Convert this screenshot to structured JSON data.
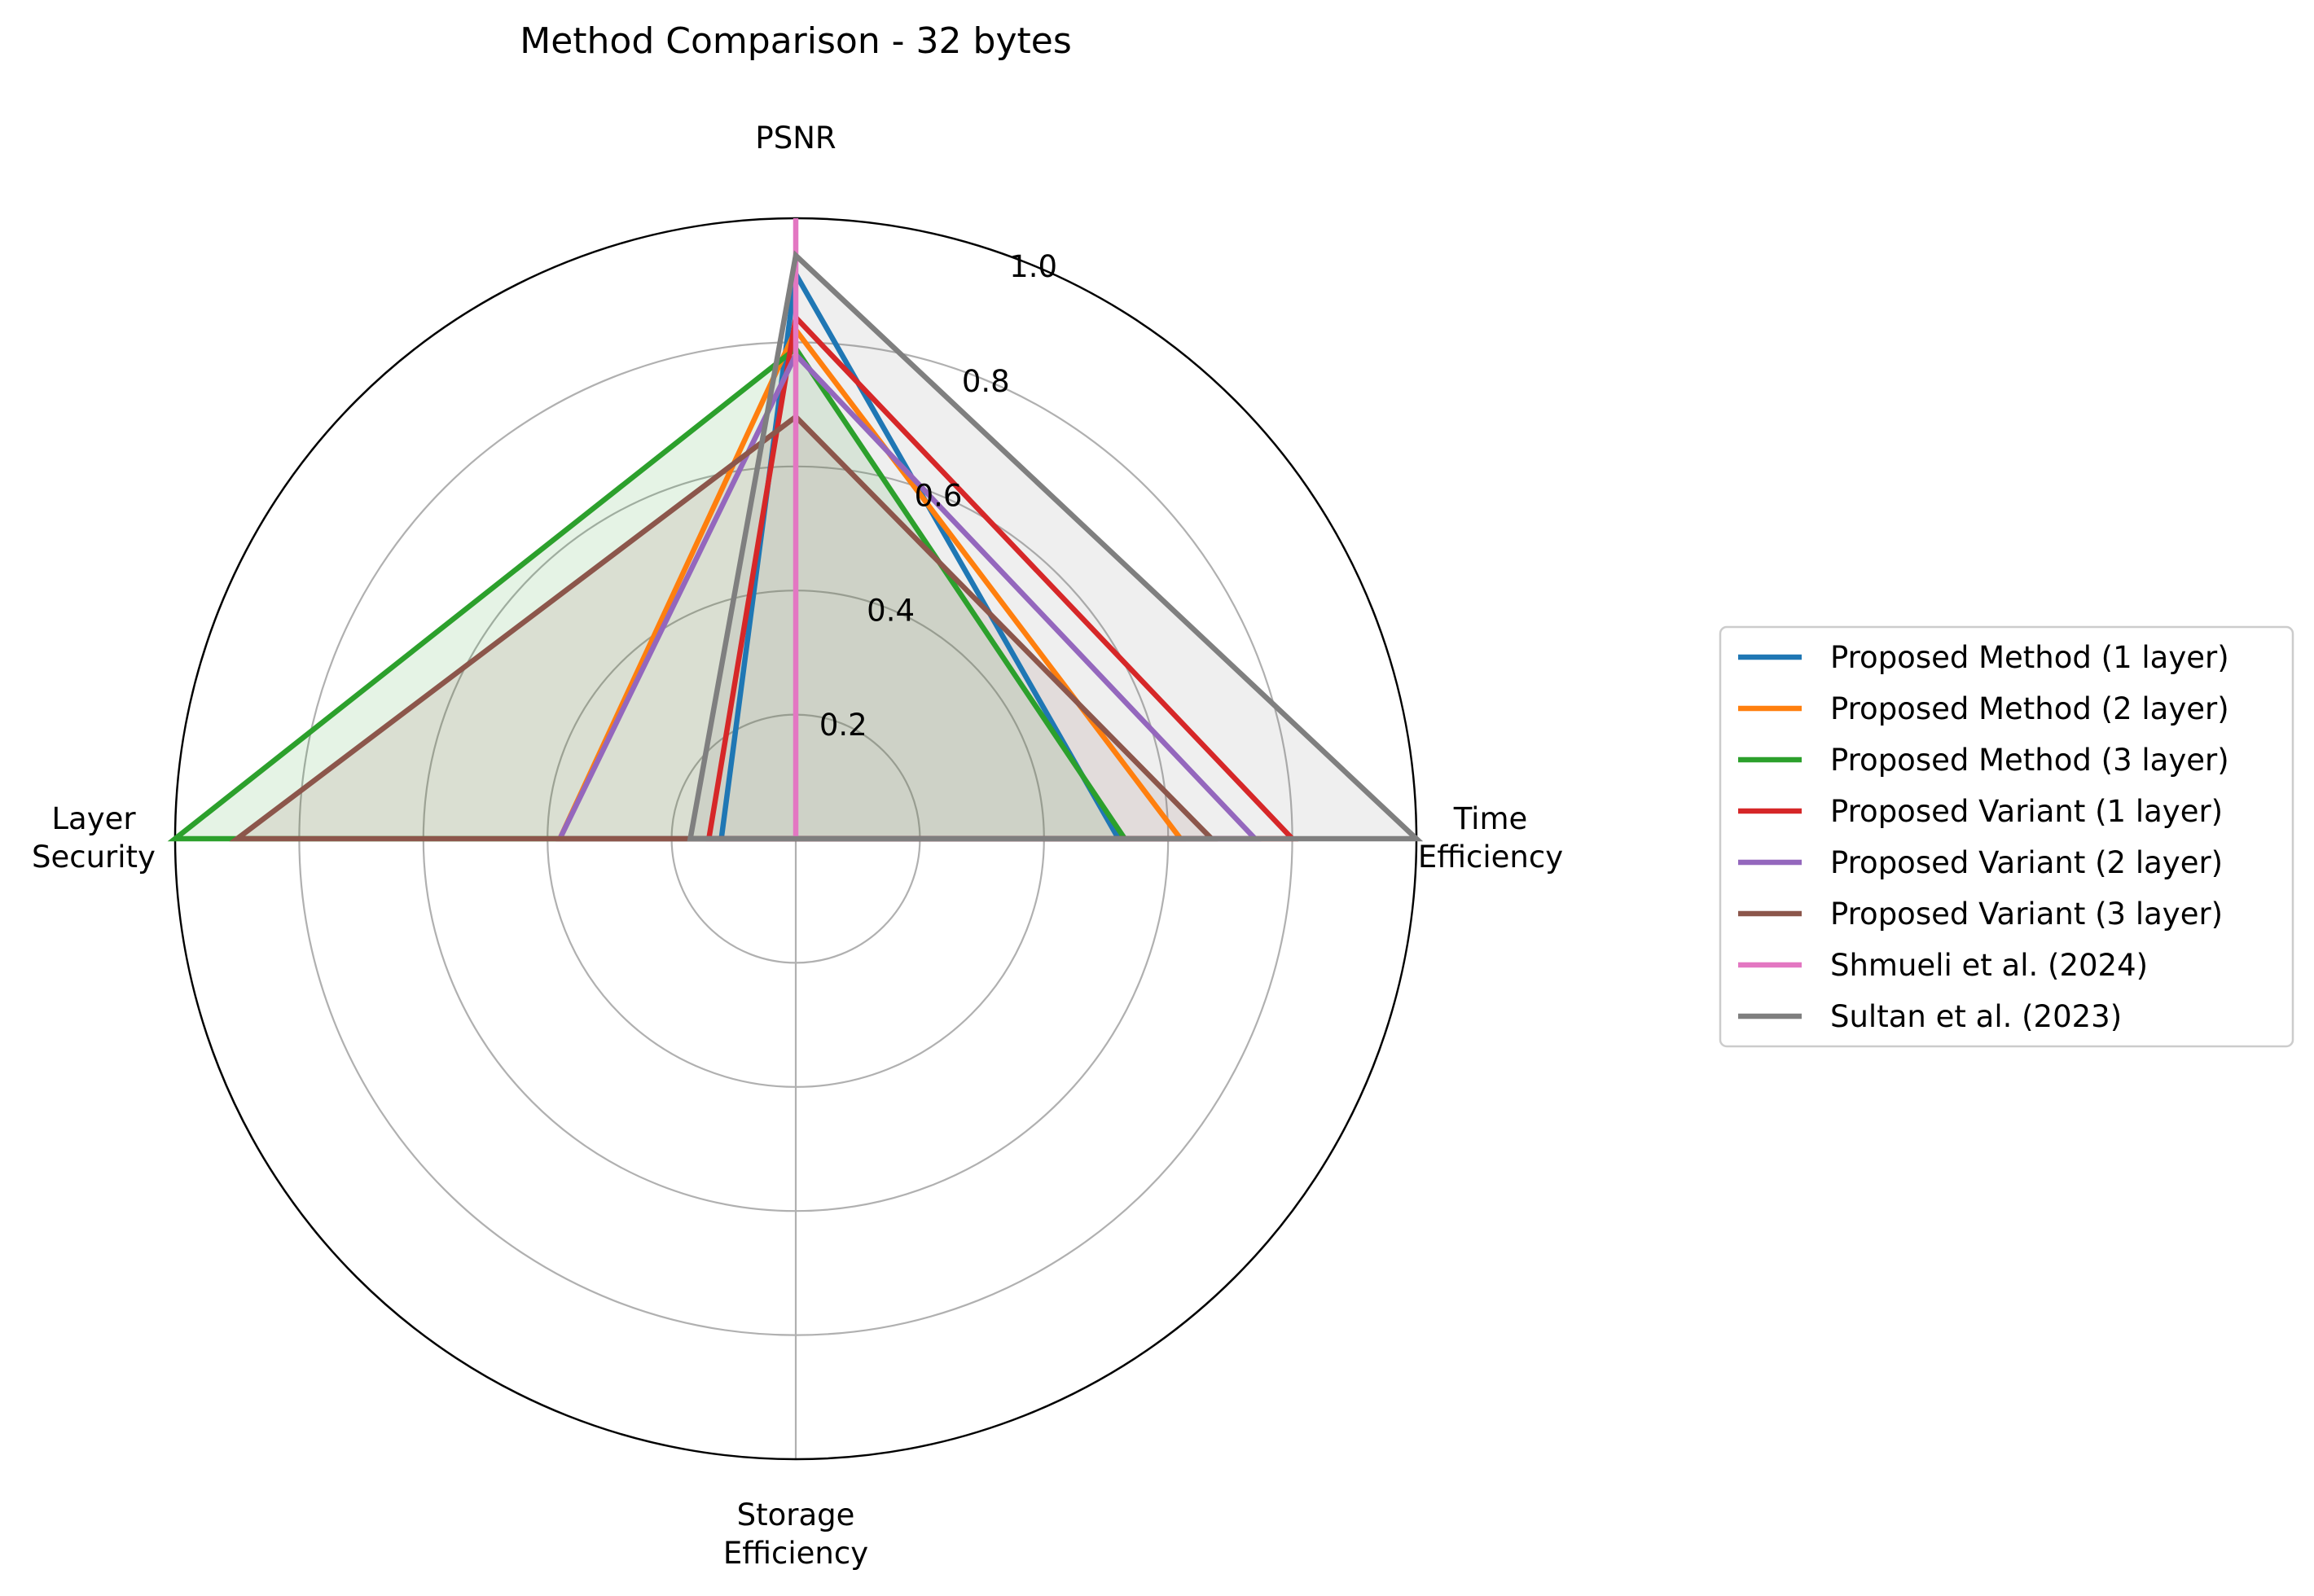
{
  "chart_data": {
    "type": "radar",
    "title": "Method Comparison - 32 bytes",
    "axes": [
      {
        "label_lines": [
          "PSNR"
        ]
      },
      {
        "label_lines": [
          "Time",
          "Efficiency"
        ]
      },
      {
        "label_lines": [
          "Storage",
          "Efficiency"
        ]
      },
      {
        "label_lines": [
          "Layer",
          "Security"
        ]
      }
    ],
    "rlim": [
      0,
      1.0
    ],
    "r_ticks": [
      0.2,
      0.4,
      0.6,
      0.8,
      1.0
    ],
    "r_tick_labels": [
      "0.2",
      "0.4",
      "0.6",
      "0.8",
      "1.0"
    ],
    "grid": true,
    "legend_position": "right",
    "series": [
      {
        "name": "Proposed Method (1 layer)",
        "color": "#1f77b4",
        "values": [
          0.91,
          0.52,
          0.0,
          0.12
        ],
        "fill": false
      },
      {
        "name": "Proposed Method (2 layer)",
        "color": "#ff7f0e",
        "values": [
          0.82,
          0.62,
          0.0,
          0.38
        ],
        "fill": false
      },
      {
        "name": "Proposed Method (3 layer)",
        "color": "#2ca02c",
        "values": [
          0.79,
          0.53,
          0.0,
          1.0
        ],
        "fill": true
      },
      {
        "name": "Proposed Variant (1 layer)",
        "color": "#d62728",
        "values": [
          0.84,
          0.8,
          0.0,
          0.14
        ],
        "fill": false
      },
      {
        "name": "Proposed Variant (2 layer)",
        "color": "#9467bd",
        "values": [
          0.78,
          0.74,
          0.0,
          0.38
        ],
        "fill": false
      },
      {
        "name": "Proposed Variant (3 layer)",
        "color": "#8c564b",
        "values": [
          0.68,
          0.67,
          0.0,
          0.9
        ],
        "fill": true
      },
      {
        "name": "Shmueli et al. (2024)",
        "color": "#e377c2",
        "values": [
          1.0,
          0.0,
          0.0,
          0.0
        ],
        "fill": true
      },
      {
        "name": "Sultan et al. (2023)",
        "color": "#7f7f7f",
        "values": [
          0.94,
          1.0,
          0.0,
          0.17
        ],
        "fill": true
      }
    ]
  }
}
